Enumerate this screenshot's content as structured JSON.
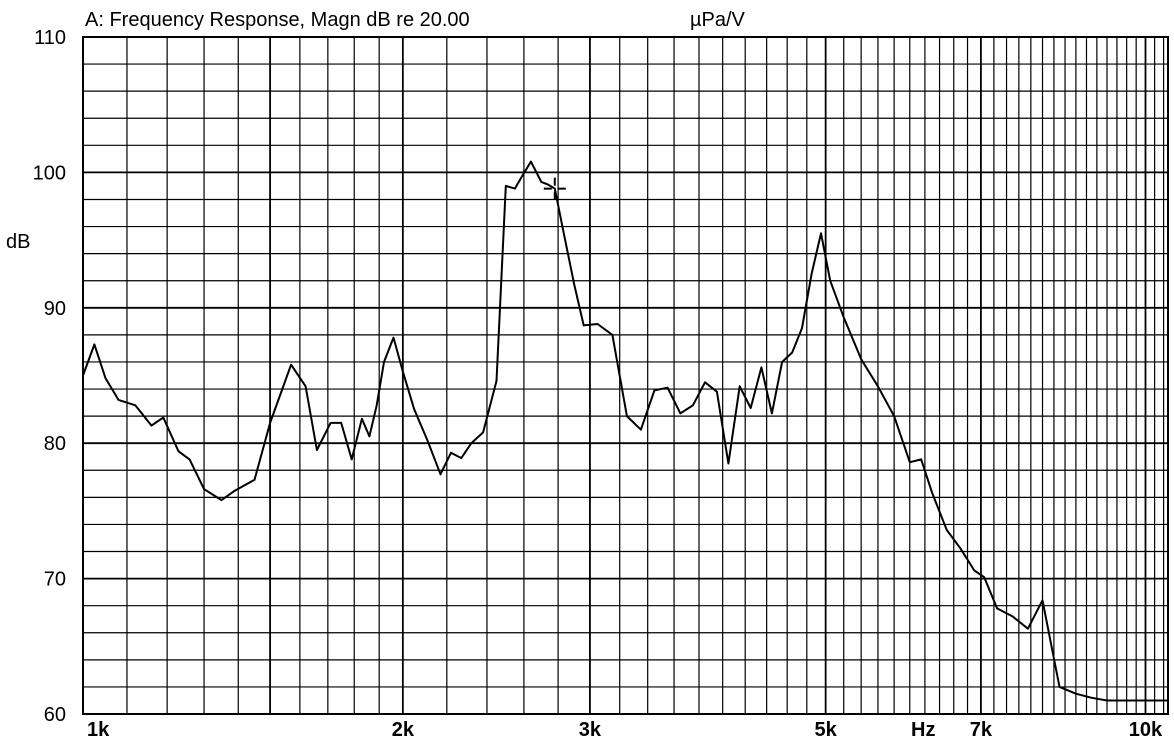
{
  "chart_data": {
    "type": "line",
    "title": "A: Frequency Response, Magn dB re 20.00",
    "unit_label": "µPa/V",
    "ylabel": "dB",
    "xlabel_unit": "Hz",
    "xscale": "log",
    "xlim": [
      1000,
      10500
    ],
    "ylim": [
      60,
      110
    ],
    "grid": true,
    "y_ticks": [
      {
        "value": 60,
        "label": "60"
      },
      {
        "value": 70,
        "label": "70"
      },
      {
        "value": 80,
        "label": "80"
      },
      {
        "value": 90,
        "label": "90"
      },
      {
        "value": 100,
        "label": "100"
      },
      {
        "value": 110,
        "label": "110"
      }
    ],
    "x_ticks": [
      {
        "value": 1000,
        "label": "1k"
      },
      {
        "value": 2000,
        "label": "2k"
      },
      {
        "value": 3000,
        "label": "3k"
      },
      {
        "value": 5000,
        "label": "5k"
      },
      {
        "value": 7000,
        "label": "7k"
      },
      {
        "value": 10000,
        "label": "10k"
      }
    ],
    "series": [
      {
        "color": "#000000",
        "x": [
          1000,
          1025,
          1050,
          1080,
          1120,
          1160,
          1190,
          1230,
          1260,
          1300,
          1350,
          1390,
          1450,
          1500,
          1570,
          1620,
          1660,
          1710,
          1750,
          1790,
          1830,
          1860,
          1890,
          1920,
          1960,
          2000,
          2050,
          2110,
          2170,
          2220,
          2270,
          2320,
          2380,
          2450,
          2500,
          2550,
          2580,
          2640,
          2700,
          2740,
          2780,
          2840,
          2900,
          2960,
          3050,
          3150,
          3250,
          3350,
          3450,
          3550,
          3650,
          3750,
          3850,
          3950,
          4050,
          4150,
          4250,
          4350,
          4450,
          4550,
          4650,
          4750,
          4850,
          4950,
          5050,
          5200,
          5400,
          5600,
          5800,
          6000,
          6150,
          6300,
          6500,
          6700,
          6900,
          7050,
          7250,
          7500,
          7750,
          8000,
          8300,
          8600,
          8900,
          9200,
          9500,
          9800,
          10050,
          10250,
          10500
        ],
        "values": [
          85.0,
          87.3,
          84.8,
          83.2,
          82.8,
          81.3,
          81.9,
          79.4,
          78.8,
          76.6,
          75.8,
          76.5,
          77.3,
          81.5,
          85.8,
          84.2,
          79.5,
          81.5,
          81.5,
          78.8,
          81.8,
          80.5,
          82.8,
          86.0,
          87.8,
          85.3,
          82.5,
          80.2,
          77.7,
          79.3,
          78.9,
          80.0,
          80.8,
          84.6,
          99.0,
          98.8,
          99.5,
          100.8,
          99.3,
          99.1,
          98.8,
          95.2,
          91.7,
          88.7,
          88.8,
          88.0,
          82.0,
          81.0,
          83.9,
          84.1,
          82.2,
          82.8,
          84.5,
          83.8,
          78.5,
          84.2,
          82.6,
          85.6,
          82.2,
          86.0,
          86.7,
          88.5,
          92.5,
          95.5,
          92.0,
          89.3,
          86.2,
          84.2,
          82.0,
          78.6,
          78.8,
          76.3,
          73.6,
          72.2,
          70.6,
          70.1,
          67.8,
          67.2,
          66.3,
          68.4,
          62.0,
          61.5,
          61.2,
          61.0,
          61.0,
          61.0,
          61.0,
          61.0,
          61.0
        ]
      }
    ],
    "cursor": {
      "x": 2780,
      "y": 98.8
    }
  }
}
